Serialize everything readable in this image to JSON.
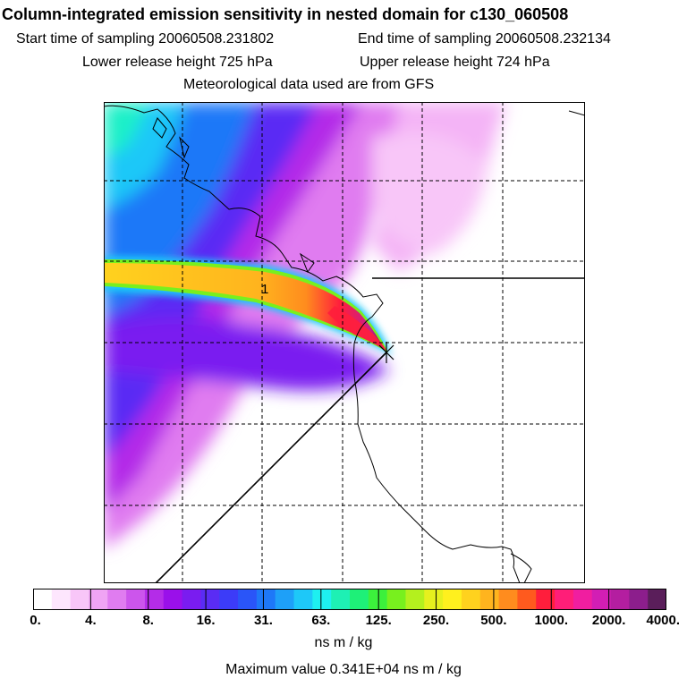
{
  "header": {
    "title": "Column-integrated emission sensitivity in nested domain for c130_060508",
    "start_label": "Start time of sampling 20060508.231802",
    "end_label": "End time of sampling 20060508.232134",
    "lower_label": "Lower release height  725 hPa",
    "upper_label": "Upper release height  724 hPa",
    "met_label": "Meteorological data used are from GFS"
  },
  "map": {
    "plume_label": "1"
  },
  "colorbar": {
    "tick_labels": [
      "0.",
      "4.",
      "8.",
      "16.",
      "31.",
      "63.",
      "125.",
      "250.",
      "500.",
      "1000.",
      "2000.",
      "4000."
    ],
    "colors": [
      "#ffffff",
      "#fde6fd",
      "#f8c6f8",
      "#f0a4f4",
      "#e07cf0",
      "#cc55ec",
      "#b42ce8",
      "#9a10ea",
      "#7a1cf0",
      "#5a2cf4",
      "#3c3cf8",
      "#2a55f8",
      "#1e78f8",
      "#1ea0f8",
      "#1ec8f8",
      "#1ef0f0",
      "#1ef0b4",
      "#1ef078",
      "#3cf03c",
      "#78f01e",
      "#b4f01e",
      "#e6f01e",
      "#fff01e",
      "#ffd21e",
      "#ffb41e",
      "#ff8c1e",
      "#ff5a1e",
      "#ff1e3c",
      "#ff1e78",
      "#f01ea0",
      "#d21eb4",
      "#b41ea0",
      "#8c1e8c",
      "#5a1e5a"
    ],
    "units": "ns m / kg"
  },
  "footer": {
    "max_value": "Maximum value  0.341E+04 ns m / kg"
  }
}
